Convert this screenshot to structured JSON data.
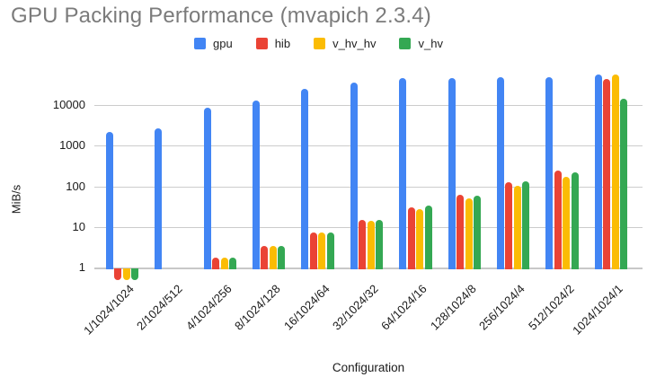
{
  "chart_data": {
    "type": "bar",
    "title": "GPU Packing Performance (mvapich 2.3.4)",
    "xlabel": "Configuration",
    "ylabel": "MiB/s",
    "y_scale": "log",
    "y_ticks": [
      1,
      10,
      100,
      1000,
      10000
    ],
    "ylim": [
      0.5,
      80000
    ],
    "grid": true,
    "legend_position": "top",
    "categories": [
      "1/1024/1024",
      "2/1024/512",
      "4/1024/256",
      "8/1024/128",
      "16/1024/64",
      "32/1024/32",
      "64/1024/16",
      "128/1024/8",
      "256/1024/4",
      "512/1024/2",
      "1024/1024/1"
    ],
    "series": [
      {
        "name": "gpu",
        "color": "#4285F4",
        "values": [
          2200,
          2600,
          8500,
          13000,
          25000,
          35500,
          45000,
          46000,
          47500,
          48000,
          54000
        ]
      },
      {
        "name": "hib",
        "color": "#EA4335",
        "values": [
          0.5,
          null,
          1.8,
          3.5,
          7.5,
          15,
          31,
          62,
          125,
          240,
          43000
        ]
      },
      {
        "name": "v_hv_hv",
        "color": "#FBBC04",
        "values": [
          0.5,
          null,
          1.8,
          3.5,
          7.3,
          14.5,
          27,
          51,
          104,
          170,
          54000
        ]
      },
      {
        "name": "v_hv",
        "color": "#34A853",
        "values": [
          0.5,
          null,
          1.8,
          3.5,
          7.5,
          15,
          33,
          60,
          130,
          225,
          14000
        ]
      }
    ]
  },
  "colors": {
    "background": "#ffffff",
    "title_text": "#7b7b7b",
    "axis_text": "#1a1a1a",
    "gridline": "#cccccc"
  }
}
